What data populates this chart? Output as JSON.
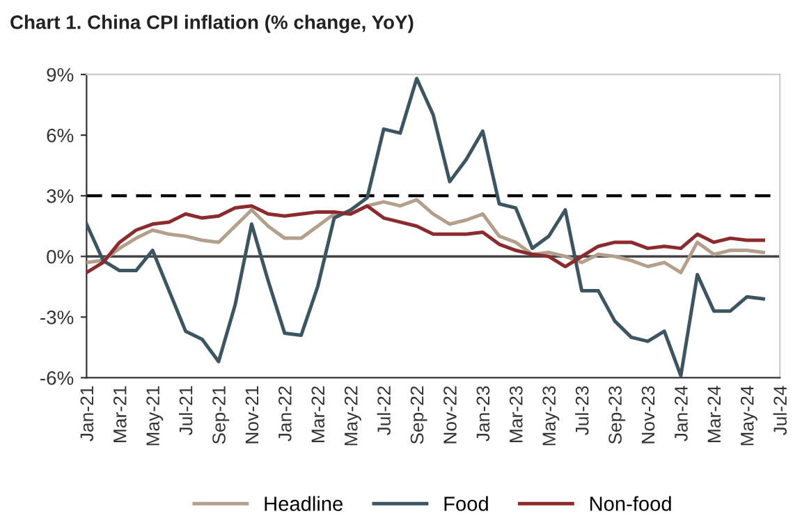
{
  "chart_data": {
    "type": "line",
    "title": "Chart 1. China CPI inflation (% change, YoY)",
    "categories": [
      "Jan-21",
      null,
      "Mar-21",
      null,
      "May-21",
      null,
      "Jul-21",
      null,
      "Sep-21",
      null,
      "Nov-21",
      null,
      "Jan-22",
      null,
      "Mar-22",
      null,
      "May-22",
      null,
      "Jul-22",
      null,
      "Sep-22",
      null,
      "Nov-22",
      null,
      "Jan-23",
      null,
      "Mar-23",
      null,
      "May-23",
      null,
      "Jul-23",
      null,
      "Sep-23",
      null,
      "Nov-23",
      null,
      "Jan-24",
      null,
      "Mar-24",
      null,
      "May-24",
      null,
      "Jul-24"
    ],
    "series": [
      {
        "name": "Headline",
        "color": "#b3a08c",
        "values": [
          -0.3,
          -0.2,
          0.4,
          0.9,
          1.3,
          1.1,
          1.0,
          0.8,
          0.7,
          1.5,
          2.3,
          1.5,
          0.9,
          0.9,
          1.5,
          2.1,
          2.1,
          2.5,
          2.7,
          2.5,
          2.8,
          2.1,
          1.6,
          1.8,
          2.1,
          1.0,
          0.7,
          0.1,
          0.2,
          0.0,
          -0.3,
          0.1,
          0.0,
          -0.2,
          -0.5,
          -0.3,
          -0.8,
          0.7,
          0.1,
          0.3,
          0.3,
          0.2,
          null
        ]
      },
      {
        "name": "Food",
        "color": "#3d5561",
        "values": [
          1.6,
          -0.2,
          -0.7,
          -0.7,
          0.3,
          -1.7,
          -3.7,
          -4.1,
          -5.2,
          -2.4,
          1.6,
          -1.2,
          -3.8,
          -3.9,
          -1.5,
          1.9,
          2.3,
          2.9,
          6.3,
          6.1,
          8.8,
          7.0,
          3.7,
          4.8,
          6.2,
          2.6,
          2.4,
          0.4,
          1.0,
          2.3,
          -1.7,
          -1.7,
          -3.2,
          -4.0,
          -4.2,
          -3.7,
          -5.9,
          -0.9,
          -2.7,
          -2.7,
          -2.0,
          -2.1,
          null
        ]
      },
      {
        "name": "Non-food",
        "color": "#8b2b2e",
        "values": [
          -0.8,
          -0.3,
          0.7,
          1.3,
          1.6,
          1.7,
          2.1,
          1.9,
          2.0,
          2.4,
          2.5,
          2.1,
          2.0,
          2.1,
          2.2,
          2.2,
          2.1,
          2.5,
          1.9,
          1.7,
          1.5,
          1.1,
          1.1,
          1.1,
          1.2,
          0.6,
          0.3,
          0.1,
          0.0,
          -0.5,
          0.0,
          0.5,
          0.7,
          0.7,
          0.4,
          0.5,
          0.4,
          1.1,
          0.7,
          0.9,
          0.8,
          0.8,
          null
        ]
      }
    ],
    "ylim": [
      -6,
      9
    ],
    "yticks": [
      {
        "value": -6,
        "label": "-6%"
      },
      {
        "value": -3,
        "label": "-3%"
      },
      {
        "value": 0,
        "label": "0%"
      },
      {
        "value": 3,
        "label": "3%"
      },
      {
        "value": 6,
        "label": "6%"
      },
      {
        "value": 9,
        "label": "9%"
      }
    ],
    "ref_lines": [
      {
        "axis": "y",
        "value": 3,
        "color": "#000000",
        "line_style": "dashed"
      }
    ],
    "legend": "bottom",
    "grid": false,
    "marker": "none",
    "line_style": "solid"
  }
}
